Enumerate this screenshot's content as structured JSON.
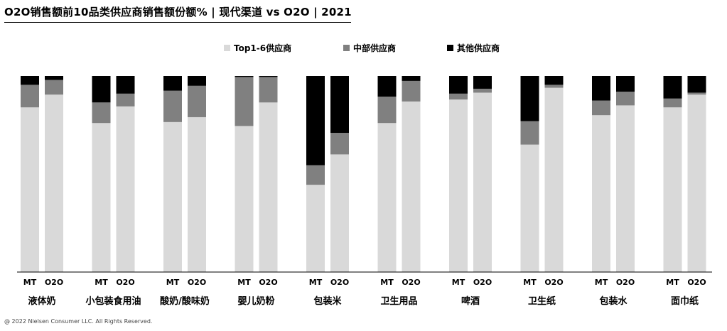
{
  "title": "O2O销售额前10品类供应商销售额份额% | 现代渠道 vs O2O | 2021",
  "footer": "@ 2022 Nielsen Consumer LLC. All Rights Reserved.",
  "colors": {
    "top": "#d9d9d9",
    "mid": "#808080",
    "other": "#000000"
  },
  "chart_data": {
    "type": "bar",
    "stacked": true,
    "normalized": true,
    "legend": {
      "placement": "top-center",
      "entries": [
        "Top1-6供应商",
        "中部供应商",
        "其他供应商"
      ]
    },
    "series_names": [
      "Top1-6供应商",
      "中部供应商",
      "其他供应商"
    ],
    "bar_labels": [
      "MT",
      "O2O"
    ],
    "ylim": [
      0,
      100
    ],
    "grid": false,
    "categories": [
      {
        "name": "液体奶",
        "bars": [
          {
            "label": "MT",
            "values": [
              84,
              11.5,
              4.5
            ]
          },
          {
            "label": "O2O",
            "values": [
              90.5,
              7.5,
              2
            ]
          }
        ]
      },
      {
        "name": "小包装食用油",
        "bars": [
          {
            "label": "MT",
            "values": [
              76,
              10.5,
              13.5
            ]
          },
          {
            "label": "O2O",
            "values": [
              84.5,
              6.5,
              9
            ]
          }
        ]
      },
      {
        "name": "酸奶/酸味奶",
        "bars": [
          {
            "label": "MT",
            "values": [
              76.5,
              16,
              7.5
            ]
          },
          {
            "label": "O2O",
            "values": [
              79,
              16,
              5
            ]
          }
        ]
      },
      {
        "name": "婴儿奶粉",
        "bars": [
          {
            "label": "MT",
            "values": [
              74.5,
              25,
              0.5
            ]
          },
          {
            "label": "O2O",
            "values": [
              86.5,
              13,
              0.5
            ]
          }
        ]
      },
      {
        "name": "包装米",
        "bars": [
          {
            "label": "MT",
            "values": [
              44.5,
              10,
              45.5
            ]
          },
          {
            "label": "O2O",
            "values": [
              60,
              11,
              29
            ]
          }
        ]
      },
      {
        "name": "卫生用品",
        "bars": [
          {
            "label": "MT",
            "values": [
              76,
              13.5,
              10.5
            ]
          },
          {
            "label": "O2O",
            "values": [
              87,
              10.5,
              2.5
            ]
          }
        ]
      },
      {
        "name": "啤酒",
        "bars": [
          {
            "label": "MT",
            "values": [
              88,
              3,
              9
            ]
          },
          {
            "label": "O2O",
            "values": [
              91.5,
              2,
              6.5
            ]
          }
        ]
      },
      {
        "name": "卫生纸",
        "bars": [
          {
            "label": "MT",
            "values": [
              65,
              12,
              23
            ]
          },
          {
            "label": "O2O",
            "values": [
              94,
              1.5,
              4.5
            ]
          }
        ]
      },
      {
        "name": "包装水",
        "bars": [
          {
            "label": "MT",
            "values": [
              80,
              7.5,
              12.5
            ]
          },
          {
            "label": "O2O",
            "values": [
              85,
              7,
              8
            ]
          }
        ]
      },
      {
        "name": "面巾纸",
        "bars": [
          {
            "label": "MT",
            "values": [
              84,
              4.5,
              11.5
            ]
          },
          {
            "label": "O2O",
            "values": [
              90.5,
              1,
              8.5
            ]
          }
        ]
      }
    ]
  }
}
